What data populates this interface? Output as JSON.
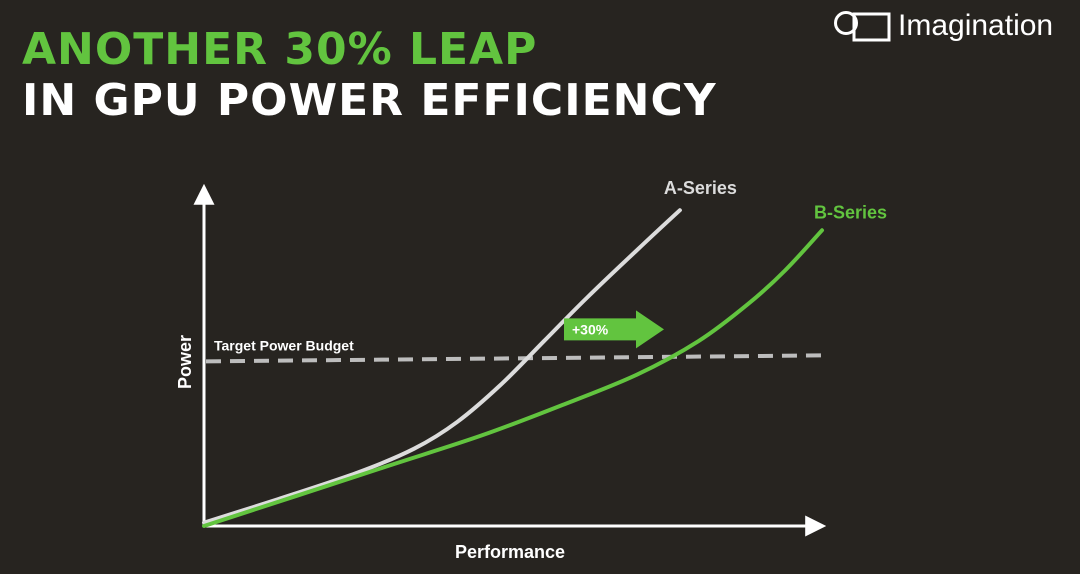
{
  "headline": {
    "line1": "ANOTHER 30% LEAP",
    "line2": "IN GPU POWER EFFICIENCY"
  },
  "brand": {
    "name": "Imagination",
    "logo_icon": "imagination-logo-icon"
  },
  "colors": {
    "background": "#272420",
    "accent_green": "#62c43f",
    "a_series": "#dcdcdc",
    "budget_line": "#bdbdbd",
    "white": "#ffffff"
  },
  "chart_data": {
    "type": "line",
    "xlabel": "Performance",
    "ylabel": "Power",
    "xlim": [
      0,
      100
    ],
    "ylim": [
      0,
      100
    ],
    "grid": false,
    "series": [
      {
        "name": "A-Series",
        "color": "#dcdcdc",
        "points": [
          [
            0,
            1
          ],
          [
            12,
            8
          ],
          [
            25,
            16
          ],
          [
            34,
            23
          ],
          [
            41,
            31
          ],
          [
            48,
            42
          ],
          [
            55,
            55
          ],
          [
            62,
            68
          ],
          [
            70,
            82
          ],
          [
            77,
            94
          ]
        ]
      },
      {
        "name": "B-Series",
        "color": "#62c43f",
        "points": [
          [
            0,
            0
          ],
          [
            15,
            9
          ],
          [
            30,
            18
          ],
          [
            45,
            27
          ],
          [
            58,
            36
          ],
          [
            70,
            45
          ],
          [
            80,
            55
          ],
          [
            88,
            66
          ],
          [
            94,
            76
          ],
          [
            100,
            88
          ]
        ]
      }
    ],
    "annotations": {
      "target_budget": {
        "label": "Target Power Budget",
        "y": 49
      },
      "improvement": {
        "label": "+30%"
      }
    }
  }
}
